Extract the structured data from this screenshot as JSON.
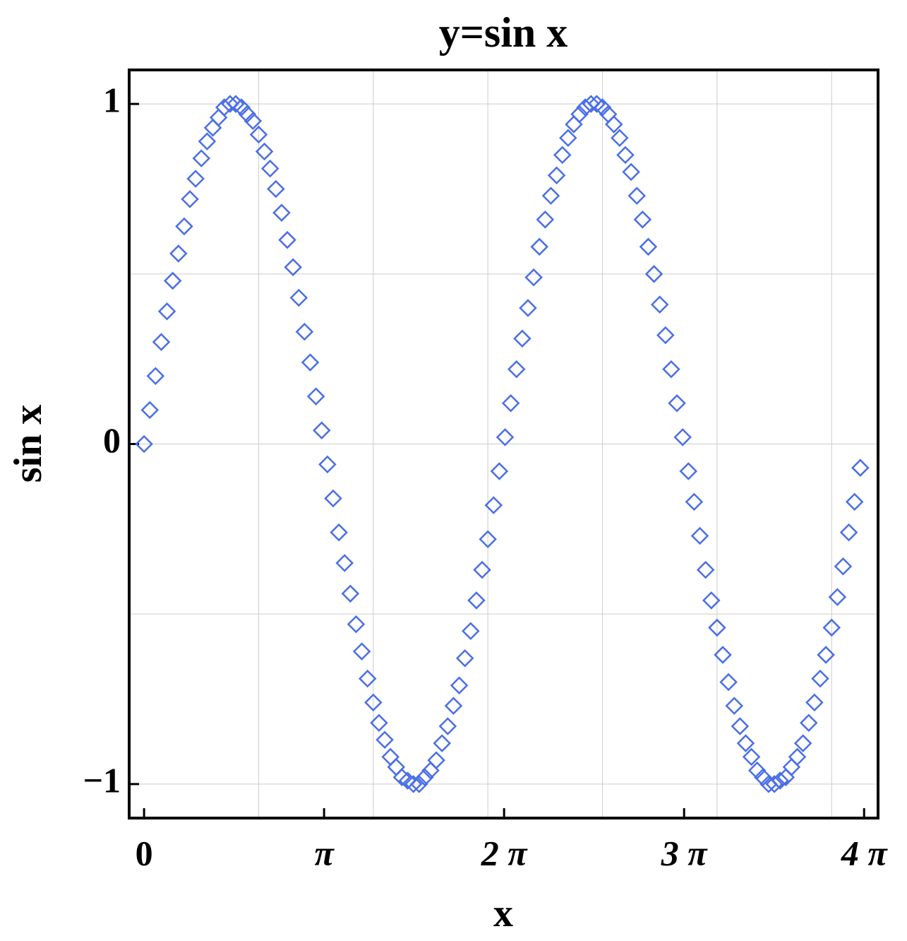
{
  "chart_data": {
    "type": "scatter",
    "title": "y=sin x",
    "x_label": "x",
    "y_label": "sin x",
    "marker": "diamond",
    "color": "#4a6ee8",
    "x": [
      0,
      0.1,
      0.2,
      0.3,
      0.4,
      0.5,
      0.6,
      0.7,
      0.8,
      0.9,
      1.0,
      1.1,
      1.2,
      1.3,
      1.4,
      1.5,
      1.6,
      1.7,
      1.8,
      1.9,
      2.0,
      2.1,
      2.2,
      2.3,
      2.4,
      2.5,
      2.6,
      2.7,
      2.8,
      2.9,
      3.0,
      3.1,
      3.2,
      3.3,
      3.4,
      3.5,
      3.6,
      3.7,
      3.8,
      3.9,
      4.0,
      4.1,
      4.2,
      4.3,
      4.4,
      4.5,
      4.6,
      4.7,
      4.8,
      4.9,
      5.0,
      5.1,
      5.2,
      5.3,
      5.4,
      5.5,
      5.6,
      5.7,
      5.8,
      5.9,
      6.0,
      6.1,
      6.2,
      6.3,
      6.4,
      6.5,
      6.6,
      6.7,
      6.8,
      6.9,
      7.0,
      7.1,
      7.2,
      7.3,
      7.4,
      7.5,
      7.6,
      7.7,
      7.8,
      7.9,
      8.0,
      8.1,
      8.2,
      8.3,
      8.4,
      8.5,
      8.6,
      8.7,
      8.8,
      8.9,
      9.0,
      9.1,
      9.2,
      9.3,
      9.4,
      9.5,
      9.6,
      9.7,
      9.8,
      9.9,
      10.0,
      10.1,
      10.2,
      10.3,
      10.4,
      10.5,
      10.6,
      10.7,
      10.8,
      10.9,
      11.0,
      11.1,
      11.2,
      11.3,
      11.4,
      11.5,
      11.6,
      11.7,
      11.8,
      11.9,
      12.0,
      12.1,
      12.2,
      12.3,
      12.4,
      12.5
    ],
    "values": [
      0,
      0.1,
      0.2,
      0.3,
      0.39,
      0.48,
      0.56,
      0.64,
      0.72,
      0.78,
      0.84,
      0.89,
      0.93,
      0.96,
      0.99,
      1.0,
      1.0,
      0.99,
      0.97,
      0.95,
      0.91,
      0.86,
      0.81,
      0.75,
      0.68,
      0.6,
      0.52,
      0.43,
      0.33,
      0.24,
      0.14,
      0.04,
      -0.06,
      -0.16,
      -0.26,
      -0.35,
      -0.44,
      -0.53,
      -0.61,
      -0.69,
      -0.76,
      -0.82,
      -0.87,
      -0.92,
      -0.95,
      -0.98,
      -0.99,
      -1.0,
      -1.0,
      -0.98,
      -0.96,
      -0.93,
      -0.88,
      -0.83,
      -0.77,
      -0.71,
      -0.63,
      -0.55,
      -0.46,
      -0.37,
      -0.28,
      -0.18,
      -0.08,
      0.02,
      0.12,
      0.22,
      0.31,
      0.4,
      0.49,
      0.58,
      0.66,
      0.73,
      0.79,
      0.85,
      0.9,
      0.94,
      0.97,
      0.99,
      1.0,
      1.0,
      0.99,
      0.97,
      0.94,
      0.9,
      0.85,
      0.8,
      0.73,
      0.66,
      0.58,
      0.5,
      0.41,
      0.32,
      0.22,
      0.12,
      0.02,
      -0.08,
      -0.17,
      -0.27,
      -0.37,
      -0.46,
      -0.54,
      -0.62,
      -0.7,
      -0.77,
      -0.83,
      -0.88,
      -0.92,
      -0.96,
      -0.98,
      -1.0,
      -1.0,
      -0.99,
      -0.98,
      -0.95,
      -0.92,
      -0.88,
      -0.82,
      -0.76,
      -0.69,
      -0.62,
      -0.54,
      -0.45,
      -0.36,
      -0.26,
      -0.17,
      -0.07
    ],
    "xlim": [
      -0.26,
      12.81
    ],
    "ylim": [
      -1.1,
      1.1
    ],
    "xticks": [
      0,
      {
        "value": 3.14159,
        "label": "π"
      },
      {
        "value": 6.28319,
        "label": "2 π"
      },
      {
        "value": 9.42478,
        "label": "3 π"
      },
      {
        "value": 12.56637,
        "label": "4 π"
      }
    ],
    "yticks": [
      {
        "value": -1,
        "label": "−1"
      },
      0,
      1
    ],
    "xgrid": [
      2,
      4,
      6,
      8,
      10,
      12
    ],
    "ygrid": [
      -1,
      -0.5,
      0,
      0.5,
      1
    ]
  }
}
